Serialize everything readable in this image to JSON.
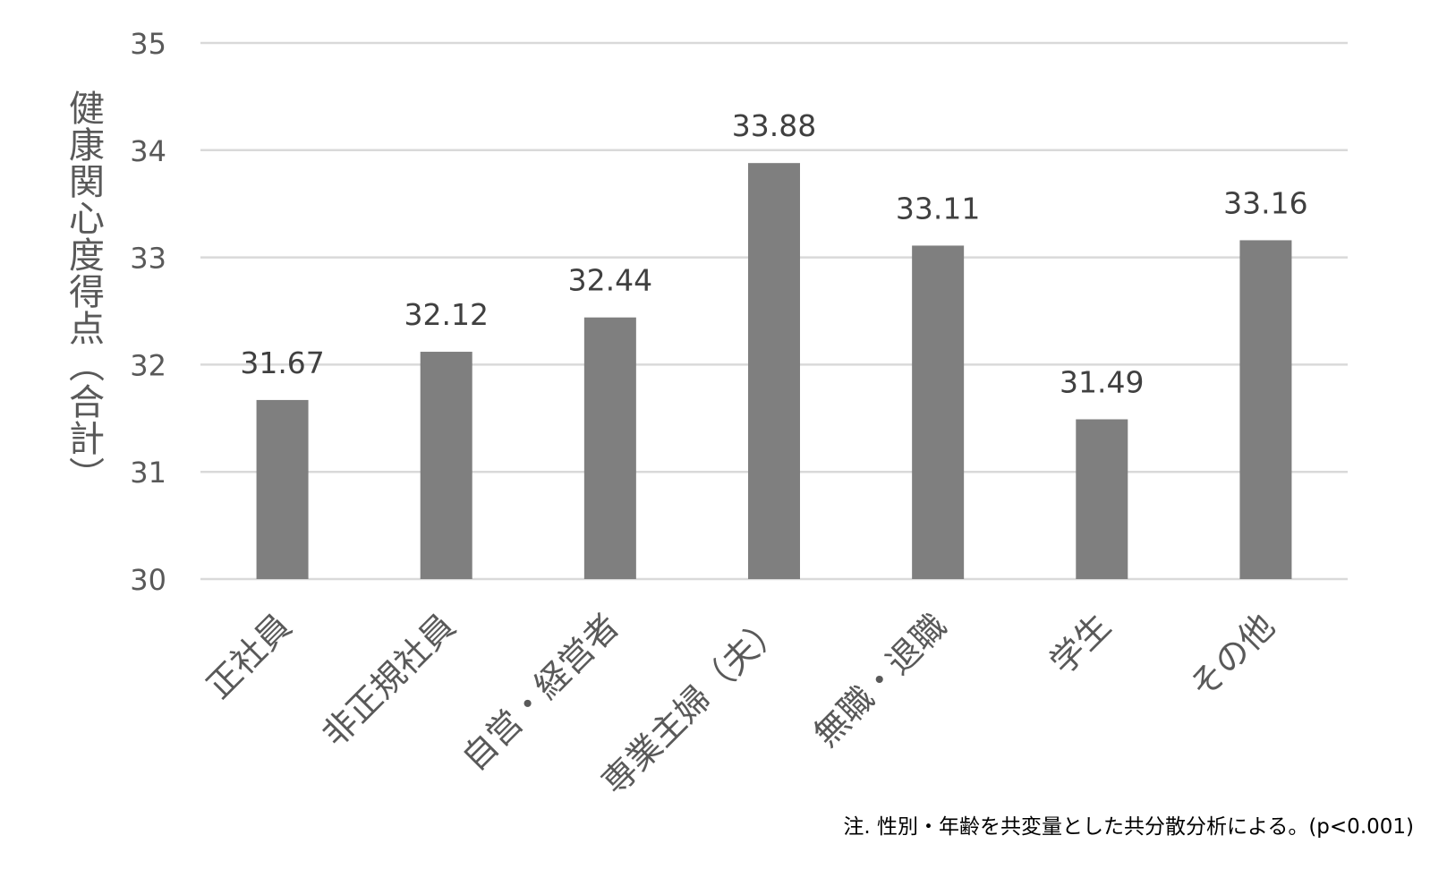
{
  "chart_data": {
    "type": "bar",
    "categories": [
      "正社員",
      "非正規社員",
      "自営・経営者",
      "専業主婦（夫）",
      "無職・退職",
      "学生",
      "その他"
    ],
    "values": [
      31.67,
      32.12,
      32.44,
      33.88,
      33.11,
      31.49,
      33.16
    ],
    "data_labels": [
      "31.67",
      "32.12",
      "32.44",
      "33.88",
      "33.11",
      "31.49",
      "33.16"
    ],
    "ylabel": "健康関心度得点（合計）",
    "xlabel": "",
    "ylim": [
      30,
      35
    ],
    "yticks": [
      30,
      31,
      32,
      33,
      34,
      35
    ],
    "grid": true,
    "legend": "none",
    "note": "注. 性別・年齢を共変量とした共分散分析による。(p<0.001)",
    "colors": {
      "bar": "#7f7f7f",
      "grid": "#d9d9d9",
      "text": "#595959",
      "label": "#404040"
    }
  }
}
